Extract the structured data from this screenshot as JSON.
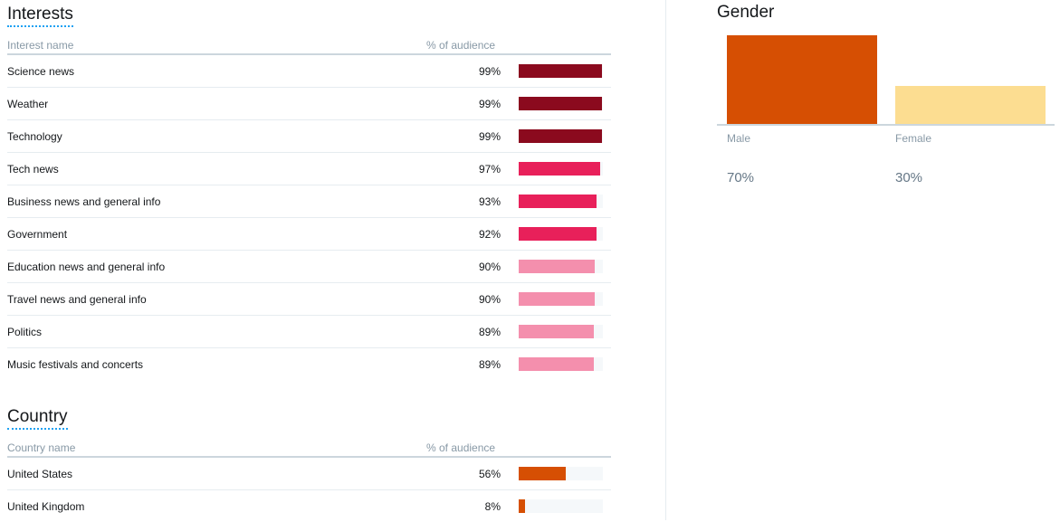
{
  "interests": {
    "title": "Interests",
    "col_name": "Interest name",
    "col_pct": "% of audience",
    "rows": [
      {
        "name": "Science news",
        "pct": "99%",
        "value": 99,
        "color": "#8b0a1e"
      },
      {
        "name": "Weather",
        "pct": "99%",
        "value": 99,
        "color": "#8b0a1e"
      },
      {
        "name": "Technology",
        "pct": "99%",
        "value": 99,
        "color": "#8b0a1e"
      },
      {
        "name": "Tech news",
        "pct": "97%",
        "value": 97,
        "color": "#e8205a"
      },
      {
        "name": "Business news and general info",
        "pct": "93%",
        "value": 93,
        "color": "#e8205a"
      },
      {
        "name": "Government",
        "pct": "92%",
        "value": 92,
        "color": "#e8205a"
      },
      {
        "name": "Education news and general info",
        "pct": "90%",
        "value": 90,
        "color": "#f48fad"
      },
      {
        "name": "Travel news and general info",
        "pct": "90%",
        "value": 90,
        "color": "#f48fad"
      },
      {
        "name": "Politics",
        "pct": "89%",
        "value": 89,
        "color": "#f48fad"
      },
      {
        "name": "Music festivals and concerts",
        "pct": "89%",
        "value": 89,
        "color": "#f48fad"
      }
    ]
  },
  "country": {
    "title": "Country",
    "col_name": "Country name",
    "col_pct": "% of audience",
    "rows": [
      {
        "name": "United States",
        "pct": "56%",
        "value": 56,
        "color": "#d64f03"
      },
      {
        "name": "United Kingdom",
        "pct": "8%",
        "value": 8,
        "color": "#d64f03"
      }
    ]
  },
  "gender": {
    "title": "Gender",
    "items": [
      {
        "label": "Male",
        "pct": "70%",
        "value": 70,
        "color": "#d64f03"
      },
      {
        "label": "Female",
        "pct": "30%",
        "value": 30,
        "color": "#fcdd91"
      }
    ]
  }
}
